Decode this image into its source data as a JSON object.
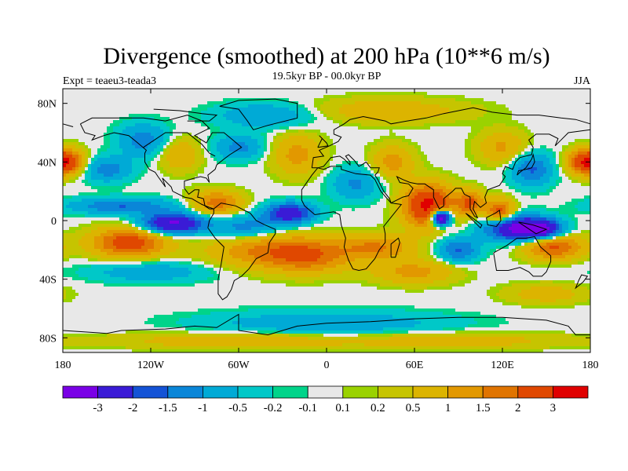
{
  "chart_data": {
    "type": "heatmap",
    "title": "Divergence (smoothed) at 200 hPa (10**6 m/s)",
    "subtitle_left": "Expt = teaeu3-teada3",
    "subtitle_center": "19.5kyr BP - 00.0kyr BP",
    "subtitle_right": "JJA",
    "x_axis": {
      "range": [
        -180,
        180
      ],
      "ticks": [
        {
          "value": -180,
          "label": "180"
        },
        {
          "value": -120,
          "label": "120W"
        },
        {
          "value": -60,
          "label": "60W"
        },
        {
          "value": 0,
          "label": "0"
        },
        {
          "value": 60,
          "label": "60E"
        },
        {
          "value": 120,
          "label": "120E"
        },
        {
          "value": 180,
          "label": "180"
        }
      ]
    },
    "y_axis": {
      "range": [
        -90,
        90
      ],
      "ticks": [
        {
          "value": 80,
          "label": "80N"
        },
        {
          "value": 40,
          "label": "40N"
        },
        {
          "value": 0,
          "label": "0"
        },
        {
          "value": -40,
          "label": "40S"
        },
        {
          "value": -80,
          "label": "80S"
        }
      ]
    },
    "colorbar": {
      "colors": [
        "#7a00e6",
        "#3a1bd6",
        "#1453d6",
        "#0a86d8",
        "#00aad6",
        "#00c8c8",
        "#00d48a",
        "#e8e8e8",
        "#9ad200",
        "#c6c400",
        "#dcb400",
        "#e29800",
        "#e07400",
        "#e04800",
        "#e00000"
      ],
      "tick_labels": [
        "-3",
        "-2",
        "-1.5",
        "-1",
        "-0.5",
        "-0.2",
        "-0.1",
        "0.1",
        "0.2",
        "0.5",
        "1",
        "1.5",
        "2",
        "3"
      ]
    },
    "anomalies": [
      {
        "lon": 70,
        "lat": 10,
        "sigma_lon": 12,
        "sigma_lat": 10,
        "amp": 3.4
      },
      {
        "lon": 78,
        "lat": 2,
        "sigma_lon": 5,
        "sigma_lat": 4,
        "amp": -5.0
      },
      {
        "lon": 128,
        "lat": -5,
        "sigma_lon": 14,
        "sigma_lat": 6,
        "amp": -3.2
      },
      {
        "lon": 148,
        "lat": -6,
        "sigma_lon": 10,
        "sigma_lat": 5,
        "amp": -2.6
      },
      {
        "lon": 118,
        "lat": 6,
        "sigma_lon": 7,
        "sigma_lat": 6,
        "amp": 2.4
      },
      {
        "lon": 98,
        "lat": 12,
        "sigma_lon": 6,
        "sigma_lat": 6,
        "amp": 2.0
      },
      {
        "lon": 155,
        "lat": -18,
        "sigma_lon": 14,
        "sigma_lat": 6,
        "amp": 2.2
      },
      {
        "lon": -135,
        "lat": -15,
        "sigma_lon": 18,
        "sigma_lat": 7,
        "amp": 2.5
      },
      {
        "lon": -105,
        "lat": -2,
        "sigma_lon": 15,
        "sigma_lat": 5,
        "amp": -3.2
      },
      {
        "lon": -140,
        "lat": 10,
        "sigma_lon": 25,
        "sigma_lat": 4,
        "amp": -1.5
      },
      {
        "lon": -25,
        "lat": 5,
        "sigma_lon": 12,
        "sigma_lat": 5,
        "amp": -2.6
      },
      {
        "lon": -55,
        "lat": -5,
        "sigma_lon": 18,
        "sigma_lat": 6,
        "amp": -1.4
      },
      {
        "lon": -75,
        "lat": 12,
        "sigma_lon": 12,
        "sigma_lat": 6,
        "amp": 1.8
      },
      {
        "lon": -40,
        "lat": -20,
        "sigma_lon": 28,
        "sigma_lat": 9,
        "amp": 1.6
      },
      {
        "lon": -10,
        "lat": -25,
        "sigma_lon": 20,
        "sigma_lat": 8,
        "amp": 1.4
      },
      {
        "lon": 35,
        "lat": -18,
        "sigma_lon": 18,
        "sigma_lat": 6,
        "amp": 1.5
      },
      {
        "lon": 90,
        "lat": -20,
        "sigma_lon": 10,
        "sigma_lat": 6,
        "amp": -1.6
      },
      {
        "lon": 60,
        "lat": -35,
        "sigma_lon": 20,
        "sigma_lat": 6,
        "amp": 1.2
      },
      {
        "lon": 175,
        "lat": 40,
        "sigma_lon": 8,
        "sigma_lat": 6,
        "amp": 2.2
      },
      {
        "lon": -175,
        "lat": 40,
        "sigma_lon": 8,
        "sigma_lat": 6,
        "amp": 2.0
      },
      {
        "lon": -150,
        "lat": 35,
        "sigma_lon": 12,
        "sigma_lat": 6,
        "amp": -1.3
      },
      {
        "lon": -125,
        "lat": 55,
        "sigma_lon": 12,
        "sigma_lat": 8,
        "amp": -1.3
      },
      {
        "lon": -100,
        "lat": 45,
        "sigma_lon": 10,
        "sigma_lat": 8,
        "amp": 1.0
      },
      {
        "lon": -60,
        "lat": 50,
        "sigma_lon": 12,
        "sigma_lat": 6,
        "amp": -1.2
      },
      {
        "lon": -20,
        "lat": 45,
        "sigma_lon": 12,
        "sigma_lat": 10,
        "amp": 1.2
      },
      {
        "lon": 20,
        "lat": 25,
        "sigma_lon": 12,
        "sigma_lat": 8,
        "amp": -1.1
      },
      {
        "lon": 45,
        "lat": 40,
        "sigma_lon": 10,
        "sigma_lat": 8,
        "amp": 1.3
      },
      {
        "lon": 140,
        "lat": 35,
        "sigma_lon": 10,
        "sigma_lat": 8,
        "amp": -1.6
      },
      {
        "lon": 120,
        "lat": 50,
        "sigma_lon": 12,
        "sigma_lat": 8,
        "amp": 1.1
      },
      {
        "lon": -40,
        "lat": 72,
        "sigma_lon": 25,
        "sigma_lat": 6,
        "amp": -1.1
      },
      {
        "lon": 40,
        "lat": 75,
        "sigma_lon": 40,
        "sigma_lat": 6,
        "amp": 0.9
      },
      {
        "lon": -120,
        "lat": -35,
        "sigma_lon": 30,
        "sigma_lat": 5,
        "amp": -0.9
      },
      {
        "lon": 150,
        "lat": -50,
        "sigma_lon": 20,
        "sigma_lat": 5,
        "amp": 0.8
      },
      {
        "lon": 0,
        "lat": -70,
        "sigma_lon": 60,
        "sigma_lat": 6,
        "amp": -0.9
      },
      {
        "lon": -60,
        "lat": -82,
        "sigma_lon": 60,
        "sigma_lat": 4,
        "amp": 0.9
      },
      {
        "lon": 90,
        "lat": -82,
        "sigma_lon": 50,
        "sigma_lat": 4,
        "amp": 0.8
      }
    ]
  }
}
